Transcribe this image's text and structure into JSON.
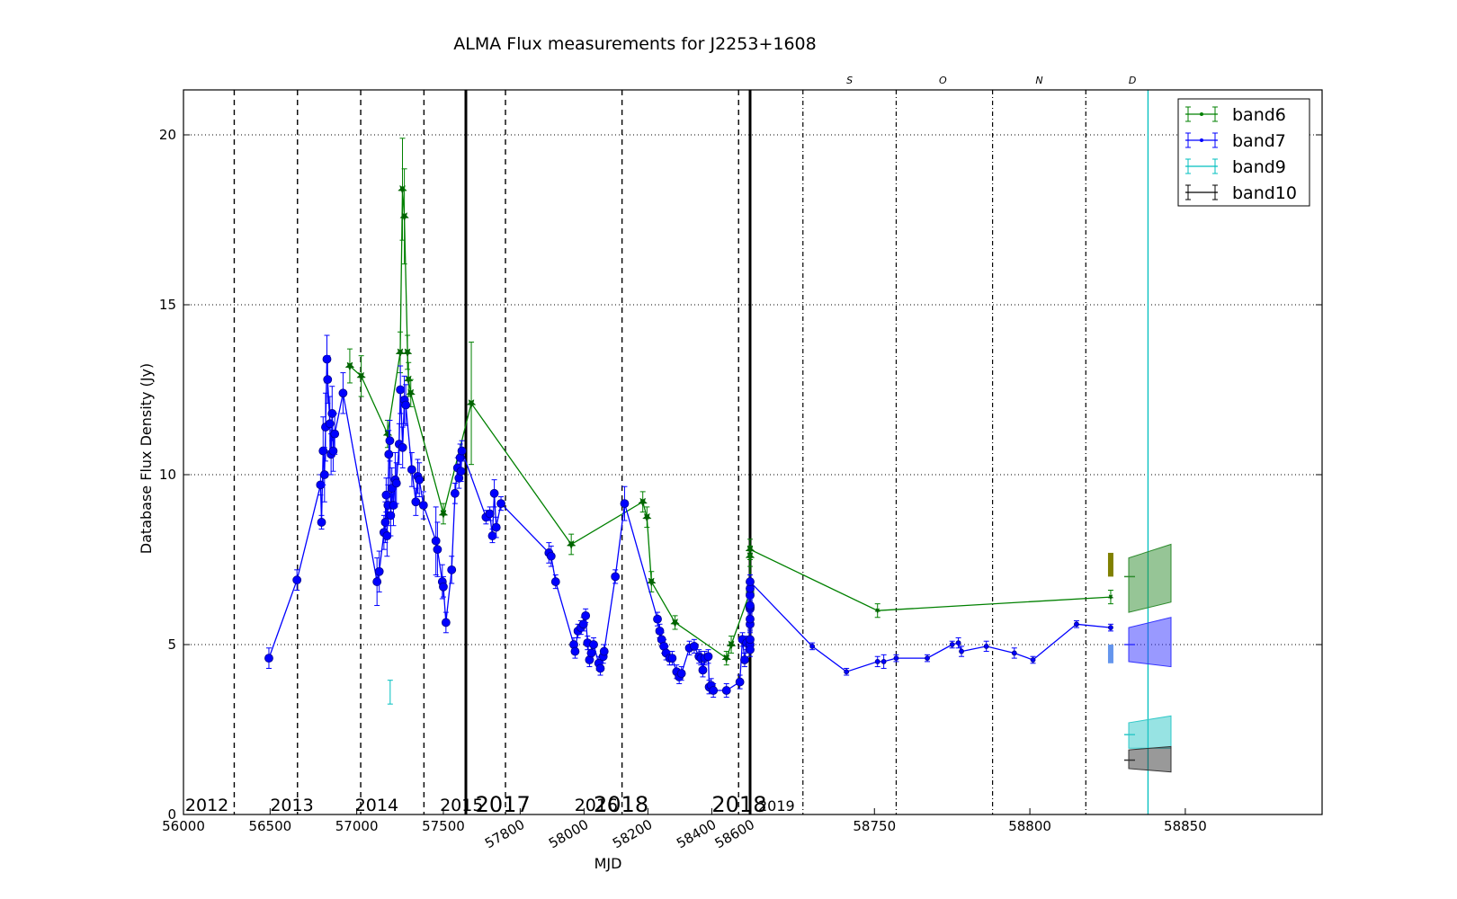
{
  "chart_data": {
    "type": "line",
    "title": "ALMA Flux measurements for J2253+1608",
    "xlabel": "MJD",
    "ylabel": "Database Flux Density (Jy)",
    "ylim": [
      0,
      21.3
    ],
    "y_ticks": [
      "0",
      "5",
      "10",
      "15",
      "20"
    ],
    "grid": "horizontal dotted at 5, 10, 15, 20",
    "legend_position": "top-right",
    "segment1": {
      "xlim": [
        56000,
        57630
      ],
      "tick_values": [
        56000,
        56500,
        57000,
        57500
      ],
      "tick_labels": [
        "56000",
        "56500",
        "57000",
        "57500"
      ],
      "year_lines": [
        56293,
        56658,
        57023,
        57388
      ],
      "year_labels": [
        {
          "x": 56010,
          "text": "2012"
        },
        {
          "x": 56500,
          "text": "2013"
        },
        {
          "x": 56990,
          "text": "2014"
        },
        {
          "x": 57480,
          "text": "2015"
        },
        {
          "x": 57970,
          "text": "2016"
        }
      ]
    },
    "segment2": {
      "xlim": [
        57630,
        58520
      ],
      "tick_values": [
        57800,
        58000,
        58200,
        58400,
        58600
      ],
      "tick_labels": [
        "57800",
        "58000",
        "58200",
        "58400",
        "58600"
      ],
      "year_lines": [
        57754,
        58119,
        58484
      ],
      "year_labels": [
        {
          "x": 57660,
          "text": "2017"
        },
        {
          "x": 58030,
          "text": "2018"
        },
        {
          "x": 58400,
          "text": "2018"
        }
      ]
    },
    "segment3": {
      "xlim": [
        58710,
        58894
      ],
      "tick_values": [
        58750,
        58800,
        58850
      ],
      "tick_labels": [
        "58750",
        "58800",
        "58850"
      ],
      "month_lines": [
        58727,
        58757,
        58788,
        58818
      ],
      "month_labels": [
        {
          "x": 58742,
          "text": "S"
        },
        {
          "x": 58772,
          "text": "O"
        },
        {
          "x": 58803,
          "text": "N"
        },
        {
          "x": 58833,
          "text": "D"
        }
      ],
      "year_label": "2019",
      "today_line": 58838
    },
    "series": [
      {
        "name": "band6",
        "color": "#008000",
        "marker": "star",
        "points": [
          [
            56960,
            13.2,
            0.5
          ],
          [
            57026,
            12.9,
            0.6
          ],
          [
            57178,
            11.2,
            0.4
          ],
          [
            57251,
            13.6,
            0.6
          ],
          [
            57264,
            18.4,
            1.5
          ],
          [
            57275,
            17.6,
            1.4
          ],
          [
            57293,
            13.6,
            0.5
          ],
          [
            57299,
            12.8,
            0.5
          ],
          [
            57312,
            12.4,
            0.4
          ],
          [
            57500,
            8.85,
            0.3
          ],
          [
            57647,
            12.1,
            1.8
          ],
          [
            57960,
            7.95,
            0.3
          ],
          [
            58184,
            9.2,
            0.3
          ],
          [
            58197,
            8.75,
            0.3
          ],
          [
            58211,
            6.85,
            0.3
          ],
          [
            58285,
            5.65,
            0.2
          ],
          [
            58446,
            4.6,
            0.2
          ],
          [
            58461,
            5.0,
            0.25
          ],
          [
            58544,
            6.55,
            0.25
          ],
          [
            58558,
            6.6,
            0.2
          ],
          [
            58570,
            7.6,
            0.3
          ],
          [
            58574,
            7.8,
            0.3
          ],
          [
            58751,
            6.0,
            0.2
          ],
          [
            58826,
            6.4,
            0.2
          ]
        ]
      },
      {
        "name": "band7",
        "color": "#0000ff",
        "marker": "circle",
        "points": [
          [
            56493,
            4.6,
            0.3
          ],
          [
            56655,
            6.9,
            0.3
          ],
          [
            56791,
            9.7,
            0.3
          ],
          [
            56797,
            8.6,
            0.2
          ],
          [
            56806,
            10.7,
            1.0
          ],
          [
            56814,
            10.0,
            0.8
          ],
          [
            56820,
            11.4,
            1.0
          ],
          [
            56828,
            13.4,
            0.7
          ],
          [
            56832,
            12.8,
            0.7
          ],
          [
            56845,
            11.5,
            0.8
          ],
          [
            56852,
            10.6,
            0.6
          ],
          [
            56858,
            11.8,
            0.8
          ],
          [
            56864,
            10.7,
            0.6
          ],
          [
            56873,
            11.2,
            0.6
          ],
          [
            56921,
            12.4,
            0.6
          ],
          [
            57117,
            6.85,
            0.7
          ],
          [
            57130,
            7.15,
            0.6
          ],
          [
            57157,
            8.3,
            0.5
          ],
          [
            57165,
            8.6,
            0.6
          ],
          [
            57170,
            9.4,
            0.5
          ],
          [
            57175,
            8.2,
            0.6
          ],
          [
            57180,
            9.1,
            0.6
          ],
          [
            57185,
            10.6,
            0.7
          ],
          [
            57191,
            11.0,
            0.6
          ],
          [
            57196,
            8.8,
            0.6
          ],
          [
            57203,
            9.6,
            0.6
          ],
          [
            57212,
            9.1,
            0.6
          ],
          [
            57222,
            9.85,
            0.8
          ],
          [
            57229,
            9.75,
            0.6
          ],
          [
            57245,
            10.9,
            0.6
          ],
          [
            57252,
            12.5,
            0.7
          ],
          [
            57265,
            10.8,
            0.6
          ],
          [
            57275,
            12.2,
            0.7
          ],
          [
            57283,
            12.05,
            0.6
          ],
          [
            57318,
            10.15,
            0.5
          ],
          [
            57341,
            9.2,
            0.4
          ],
          [
            57352,
            9.95,
            0.5
          ],
          [
            57361,
            9.85,
            0.5
          ],
          [
            57385,
            9.1,
            0.4
          ],
          [
            57457,
            8.05,
            1.0
          ],
          [
            57466,
            7.8,
            0.8
          ],
          [
            57494,
            6.85,
            0.5
          ],
          [
            57500,
            6.7,
            0.3
          ],
          [
            57515,
            5.65,
            0.3
          ],
          [
            57548,
            7.2,
            0.4
          ],
          [
            57567,
            9.45,
            0.3
          ],
          [
            57582,
            10.2,
            0.3
          ],
          [
            57590,
            9.9,
            0.3
          ],
          [
            57597,
            10.5,
            0.4
          ],
          [
            57602,
            10.1,
            0.3
          ],
          [
            57607,
            10.7,
            0.3
          ],
          [
            57693,
            8.75,
            0.2
          ],
          [
            57705,
            8.85,
            0.2
          ],
          [
            57713,
            8.2,
            0.2
          ],
          [
            57719,
            9.45,
            0.4
          ],
          [
            57725,
            8.45,
            0.3
          ],
          [
            57740,
            9.15,
            0.2
          ],
          [
            57890,
            7.7,
            0.3
          ],
          [
            57897,
            7.6,
            0.3
          ],
          [
            57911,
            6.85,
            0.2
          ],
          [
            57968,
            5.0,
            0.2
          ],
          [
            57972,
            4.8,
            0.2
          ],
          [
            57981,
            5.4,
            0.2
          ],
          [
            57990,
            5.5,
            0.2
          ],
          [
            57998,
            5.6,
            0.2
          ],
          [
            58005,
            5.85,
            0.2
          ],
          [
            58011,
            5.05,
            0.2
          ],
          [
            58017,
            4.55,
            0.2
          ],
          [
            58023,
            4.75,
            0.2
          ],
          [
            58030,
            5.0,
            0.2
          ],
          [
            58046,
            4.45,
            0.2
          ],
          [
            58051,
            4.3,
            0.2
          ],
          [
            58060,
            4.65,
            0.2
          ],
          [
            58063,
            4.8,
            0.2
          ],
          [
            58098,
            7.0,
            0.2
          ],
          [
            58127,
            9.15,
            0.5
          ],
          [
            58230,
            5.75,
            0.2
          ],
          [
            58237,
            5.4,
            0.2
          ],
          [
            58243,
            5.15,
            0.2
          ],
          [
            58250,
            4.95,
            0.2
          ],
          [
            58257,
            4.75,
            0.2
          ],
          [
            58268,
            4.6,
            0.2
          ],
          [
            58276,
            4.6,
            0.2
          ],
          [
            58290,
            4.2,
            0.2
          ],
          [
            58298,
            4.05,
            0.2
          ],
          [
            58305,
            4.15,
            0.2
          ],
          [
            58330,
            4.9,
            0.2
          ],
          [
            58345,
            4.95,
            0.2
          ],
          [
            58360,
            4.65,
            0.2
          ],
          [
            58366,
            4.6,
            0.2
          ],
          [
            58372,
            4.25,
            0.2
          ],
          [
            58378,
            4.6,
            0.2
          ],
          [
            58389,
            4.65,
            0.2
          ],
          [
            58392,
            3.75,
            0.2
          ],
          [
            58398,
            3.8,
            0.2
          ],
          [
            58405,
            3.65,
            0.2
          ],
          [
            58446,
            3.65,
            0.2
          ],
          [
            58488,
            3.9,
            0.2
          ],
          [
            58496,
            5.15,
            0.2
          ],
          [
            58503,
            4.55,
            0.2
          ],
          [
            58509,
            5.05,
            0.2
          ],
          [
            58521,
            5.0,
            0.2
          ],
          [
            58532,
            4.85,
            0.2
          ],
          [
            58550,
            5.6,
            0.2
          ],
          [
            58557,
            5.15,
            0.2
          ],
          [
            58564,
            6.05,
            0.2
          ],
          [
            58575,
            6.45,
            0.2
          ],
          [
            58585,
            6.65,
            0.2
          ],
          [
            58598,
            6.1,
            0.2
          ],
          [
            58607,
            5.75,
            0.3
          ],
          [
            58612,
            6.1,
            0.2
          ],
          [
            58618,
            6.15,
            0.2
          ],
          [
            58624,
            6.85,
            0.2
          ],
          [
            58730,
            4.95,
            0.1
          ],
          [
            58741,
            4.2,
            0.1
          ],
          [
            58751,
            4.5,
            0.15
          ],
          [
            58753,
            4.5,
            0.2
          ],
          [
            58757,
            4.6,
            0.1
          ],
          [
            58767,
            4.6,
            0.1
          ],
          [
            58775,
            5.0,
            0.1
          ],
          [
            58777,
            5.05,
            0.15
          ],
          [
            58778,
            4.8,
            0.15
          ],
          [
            58786,
            4.95,
            0.15
          ],
          [
            58795,
            4.75,
            0.15
          ],
          [
            58801,
            4.55,
            0.1
          ],
          [
            58815,
            5.6,
            0.1
          ],
          [
            58826,
            5.5,
            0.1
          ]
        ]
      },
      {
        "name": "band9",
        "color": "#00bfbf",
        "marker": "errorbar",
        "points": [
          [
            57193,
            3.6,
            0.35
          ]
        ]
      },
      {
        "name": "band10",
        "color": "#000000",
        "marker": "errorbar",
        "points": []
      }
    ],
    "annotation_bars": [
      {
        "x": 58826,
        "y_low": 7.0,
        "y_high": 7.7,
        "color": "#808000"
      },
      {
        "x": 58826,
        "y_low": 4.45,
        "y_high": 5.0,
        "color": "#6495ed"
      }
    ],
    "forecast_bands": [
      {
        "name": "band6",
        "color": "#2e8b2e",
        "start": [
          5.95,
          7.55
        ],
        "end": [
          6.25,
          7.95
        ],
        "mark": 7.0
      },
      {
        "name": "band7",
        "color": "#3333ff",
        "start": [
          4.5,
          5.5
        ],
        "end": [
          4.35,
          5.8
        ],
        "mark": 5.0
      },
      {
        "name": "band9",
        "color": "#30c8c8",
        "start": [
          1.95,
          2.7
        ],
        "end": [
          1.95,
          2.9
        ],
        "mark": 2.35
      },
      {
        "name": "band10",
        "color": "#333333",
        "start": [
          1.35,
          1.9
        ],
        "end": [
          1.25,
          2.0
        ],
        "mark": 1.6
      }
    ]
  }
}
